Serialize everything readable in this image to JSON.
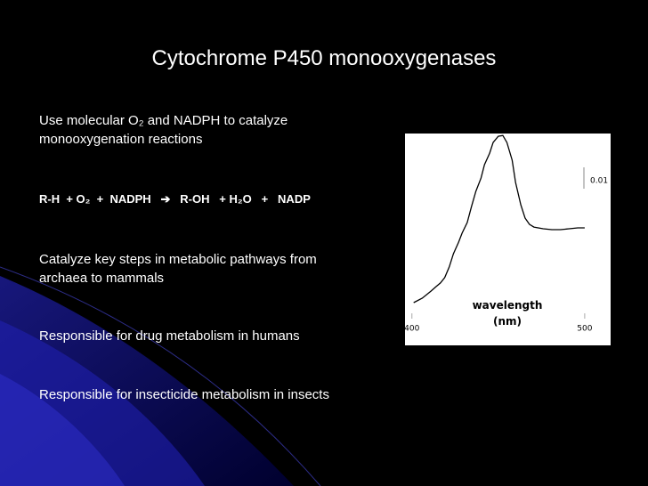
{
  "title": "Cytochrome P450 monooxygenases",
  "bullets": [
    {
      "lines": [
        "Use molecular O₂ and NADPH to catalyze",
        "monooxygenation reactions"
      ]
    },
    {
      "lines": [
        "R-H  + O₂  +  NADPH   ➔   R-OH   + H₂O   +   NADP"
      ],
      "bold": true
    },
    {
      "lines": [
        "Catalyze key steps in metabolic pathways from",
        "archaea to mammals"
      ]
    },
    {
      "lines": [
        "Responsible for drug metabolism in humans"
      ]
    },
    {
      "lines": [
        "Responsible for insecticide metabolism in insects"
      ]
    }
  ],
  "chart_data": {
    "type": "line",
    "xlabel": "wavelength (nm)",
    "color": "#000000",
    "x": [
      401,
      406,
      411,
      414,
      416.5,
      419,
      421.6,
      424,
      427,
      429,
      432,
      434.5,
      437,
      440,
      442,
      445,
      447,
      450,
      452.6,
      455,
      458,
      460,
      463,
      465.5,
      468,
      470.6,
      476,
      481,
      486,
      491,
      496,
      500
    ],
    "values": [
      0,
      0.0021,
      0.0054,
      0.0075,
      0.0092,
      0.0117,
      0.0167,
      0.0229,
      0.0283,
      0.0325,
      0.0375,
      0.045,
      0.0521,
      0.0583,
      0.0646,
      0.07,
      0.075,
      0.0779,
      0.0783,
      0.075,
      0.0667,
      0.0563,
      0.0458,
      0.0396,
      0.0367,
      0.0354,
      0.0346,
      0.0342,
      0.0342,
      0.0346,
      0.035,
      0.035
    ],
    "xlim": [
      396,
      515
    ],
    "ylim": [
      -0.02,
      0.0792
    ],
    "xticks": [
      400,
      500
    ],
    "scale_bar": 0.01
  }
}
